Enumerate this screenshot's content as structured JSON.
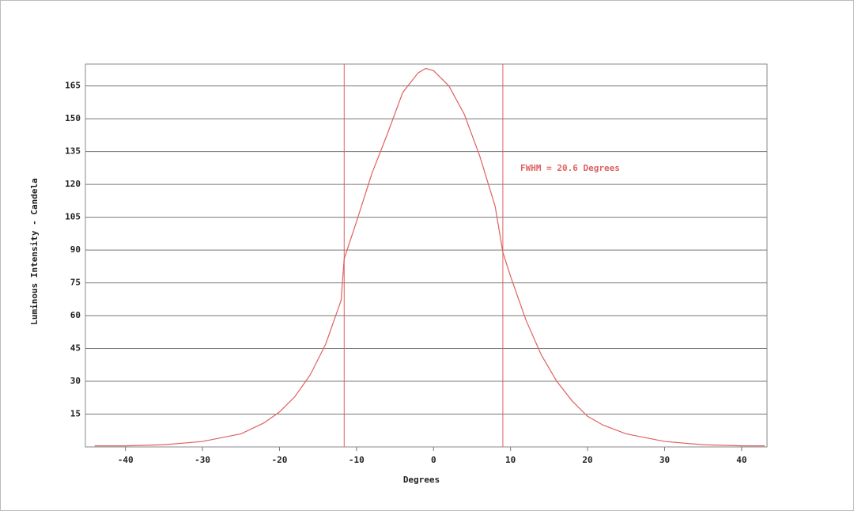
{
  "chart_data": {
    "type": "line",
    "xlabel": "Degrees",
    "ylabel": "Luminous Intensity - Candela",
    "annotation": "FWHM = 20.6 Degrees",
    "x": [
      -44,
      -40,
      -35,
      -30,
      -25,
      -22,
      -20,
      -18,
      -16,
      -14,
      -12,
      -11.6,
      -10,
      -8,
      -6,
      -4,
      -2,
      -1,
      0,
      2,
      4,
      6,
      8,
      9,
      10,
      12,
      14,
      16,
      18,
      20,
      22,
      25,
      30,
      35,
      40,
      43
    ],
    "values": [
      0.5,
      0.5,
      1,
      2.5,
      6,
      11,
      16,
      23,
      33,
      47,
      67,
      86,
      103,
      125,
      143,
      162,
      171,
      173,
      172,
      165,
      152,
      133,
      110,
      89,
      78,
      58,
      42,
      30,
      21,
      14,
      10,
      6,
      2.5,
      1,
      0.5,
      0.5
    ],
    "color": "#e06060",
    "vlines": [
      -11.6,
      9.0
    ],
    "xlim": [
      -45.2,
      43.3
    ],
    "ylim": [
      0,
      175
    ],
    "xticks": [
      -40,
      -30,
      -20,
      -10,
      0,
      10,
      20,
      30,
      40
    ],
    "yticks": [
      15,
      30,
      45,
      60,
      75,
      90,
      105,
      120,
      135,
      150,
      165
    ],
    "grid": true
  }
}
